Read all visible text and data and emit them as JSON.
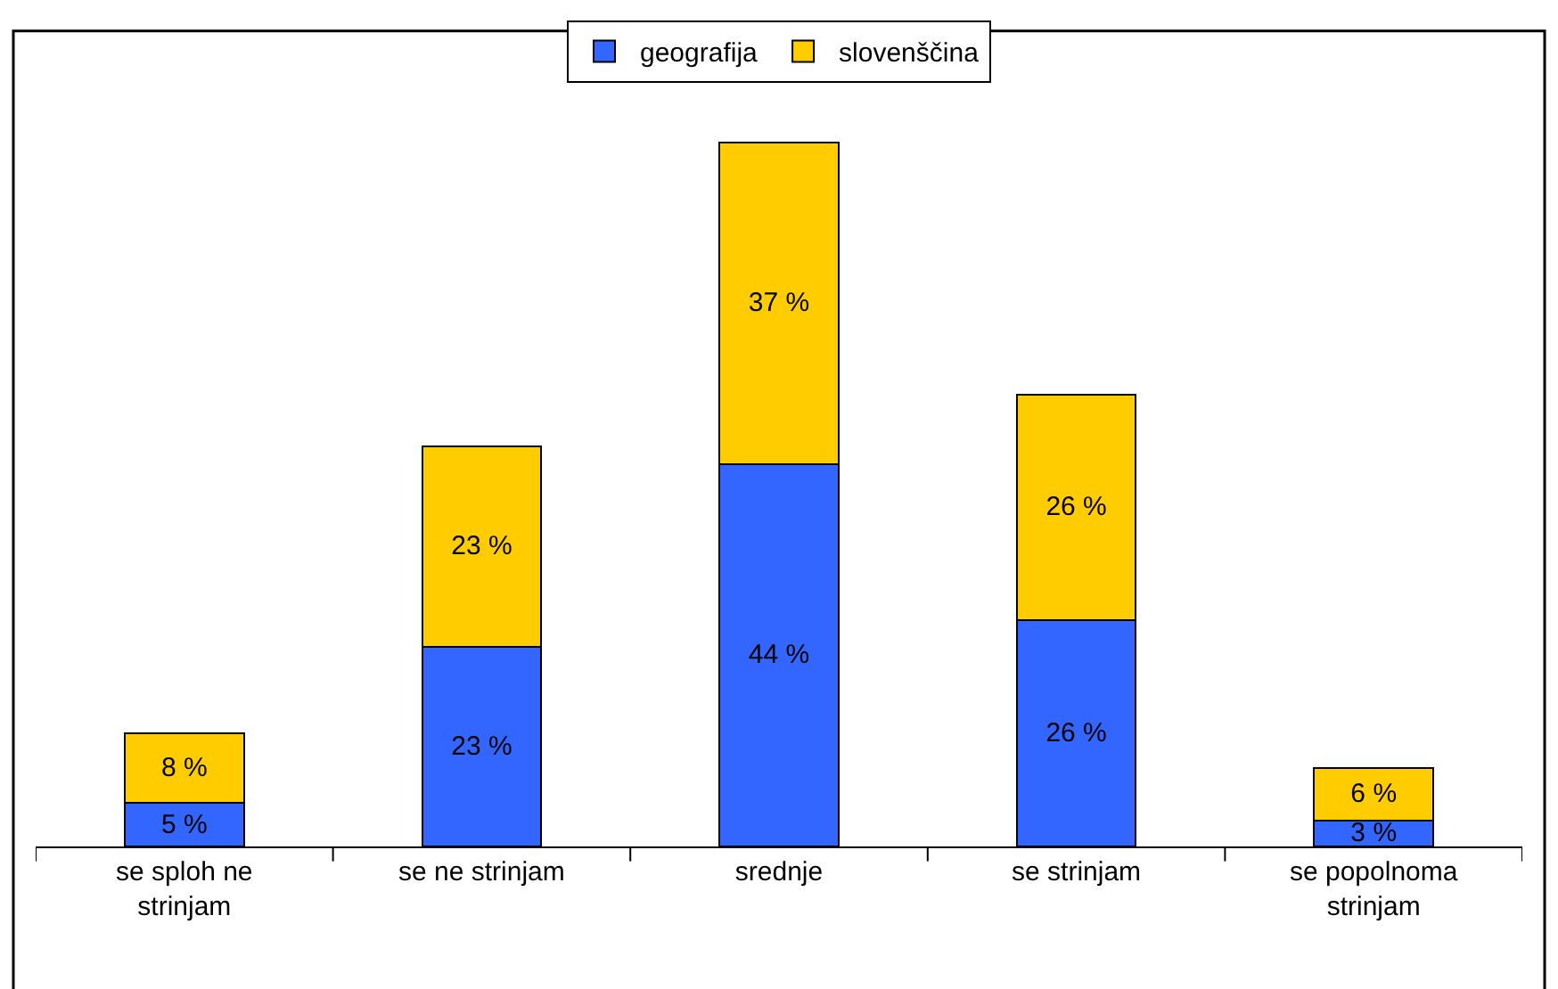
{
  "chart_data": {
    "type": "bar",
    "stacked": true,
    "categories": [
      "se sploh ne strinjam",
      "se ne strinjam",
      "srednje",
      "se strinjam",
      "se popolnoma strinjam"
    ],
    "series": [
      {
        "name": "geografija",
        "color": "#3366ff",
        "values": [
          5,
          23,
          44,
          26,
          3
        ],
        "value_labels": [
          "5 %",
          "23 %",
          "44 %",
          "26 %",
          "3 %"
        ]
      },
      {
        "name": "slovenščina",
        "color": "#ffcc00",
        "values": [
          8,
          23,
          37,
          26,
          6
        ],
        "value_labels": [
          "8 %",
          "23 %",
          "37 %",
          "26 %",
          "6 %"
        ]
      }
    ],
    "legend": "top"
  }
}
